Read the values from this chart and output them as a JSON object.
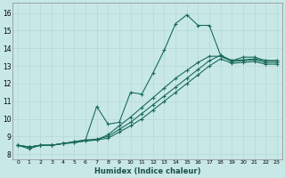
{
  "xlabel": "Humidex (Indice chaleur)",
  "background_color": "#c8e8e8",
  "grid_color": "#b8d8d0",
  "line_color": "#1a6b5a",
  "xlim": [
    -0.5,
    23.5
  ],
  "ylim": [
    7.7,
    16.6
  ],
  "xticks": [
    0,
    1,
    2,
    3,
    4,
    5,
    6,
    7,
    8,
    9,
    10,
    11,
    12,
    13,
    14,
    15,
    16,
    17,
    18,
    19,
    20,
    21,
    22,
    23
  ],
  "yticks": [
    8,
    9,
    10,
    11,
    12,
    13,
    14,
    15,
    16
  ],
  "series": [
    {
      "x": [
        0,
        1,
        2,
        3,
        4,
        5,
        6,
        7,
        8,
        9,
        10,
        11,
        12,
        13,
        14,
        15,
        16,
        17,
        18,
        19,
        20,
        21,
        22,
        23
      ],
      "y": [
        8.5,
        8.3,
        8.5,
        8.5,
        8.6,
        8.7,
        8.8,
        10.7,
        9.7,
        9.8,
        11.5,
        11.4,
        12.6,
        13.9,
        15.4,
        15.9,
        15.3,
        15.3,
        13.6,
        13.3,
        13.5,
        13.5,
        13.3,
        13.3
      ]
    },
    {
      "x": [
        0,
        1,
        2,
        3,
        4,
        5,
        6,
        7,
        8,
        9,
        10,
        11,
        12,
        13,
        14,
        15,
        16,
        17,
        18,
        19,
        20,
        21,
        22,
        23
      ],
      "y": [
        8.5,
        8.4,
        8.5,
        8.5,
        8.6,
        8.7,
        8.8,
        8.85,
        9.0,
        9.4,
        9.8,
        10.3,
        10.8,
        11.3,
        11.8,
        12.3,
        12.8,
        13.3,
        13.6,
        13.3,
        13.35,
        13.4,
        13.3,
        13.3
      ]
    },
    {
      "x": [
        0,
        1,
        2,
        3,
        4,
        5,
        6,
        7,
        8,
        9,
        10,
        11,
        12,
        13,
        14,
        15,
        16,
        17,
        18,
        19,
        20,
        21,
        22,
        23
      ],
      "y": [
        8.5,
        8.4,
        8.5,
        8.5,
        8.6,
        8.65,
        8.75,
        8.8,
        8.9,
        9.25,
        9.6,
        10.0,
        10.5,
        11.0,
        11.5,
        12.0,
        12.5,
        13.0,
        13.4,
        13.15,
        13.2,
        13.25,
        13.1,
        13.1
      ]
    },
    {
      "x": [
        0,
        1,
        2,
        3,
        4,
        5,
        6,
        7,
        8,
        9,
        10,
        11,
        12,
        13,
        14,
        15,
        16,
        17,
        18,
        19,
        20,
        21,
        22,
        23
      ],
      "y": [
        8.5,
        8.4,
        8.5,
        8.5,
        8.6,
        8.65,
        8.75,
        8.8,
        9.1,
        9.6,
        10.1,
        10.65,
        11.2,
        11.75,
        12.3,
        12.75,
        13.2,
        13.55,
        13.55,
        13.25,
        13.3,
        13.35,
        13.2,
        13.2
      ]
    }
  ]
}
